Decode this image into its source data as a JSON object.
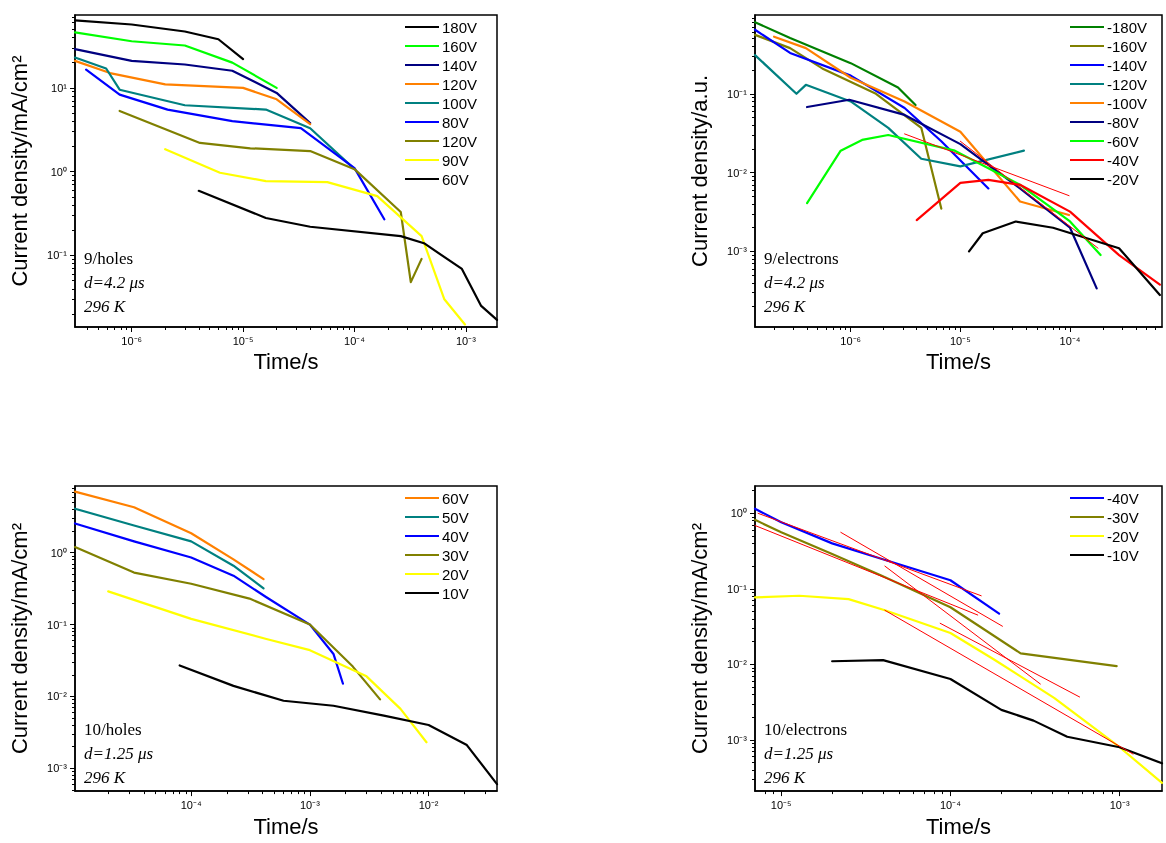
{
  "chart_data": [
    {
      "type": "line",
      "xlabel": "Time/s",
      "ylabel": "Current density/mA/cm²",
      "annotations": [
        "9/holes",
        "d=4.2 μs",
        "296 K"
      ],
      "log": "xy",
      "grid": false,
      "legend": "top right",
      "xlim": [
        3.1e-07,
        0.0019
      ],
      "ylim": [
        0.014,
        74
      ],
      "xticks": [
        {
          "value": 1e-06,
          "label": "10⁻⁶"
        },
        {
          "value": 1e-05,
          "label": "10⁻⁵"
        },
        {
          "value": 0.0001,
          "label": "10⁻⁴"
        },
        {
          "value": 0.001,
          "label": "10⁻³"
        }
      ],
      "yticks": [
        {
          "value": 0.1,
          "label": "10⁻¹"
        },
        {
          "value": 1,
          "label": "10⁰"
        },
        {
          "value": 10,
          "label": "10¹"
        }
      ],
      "series": [
        {
          "name": "180V",
          "color": "#000000",
          "x": [
            3.1e-07,
            1e-06,
            3e-06,
            6e-06,
            1e-05
          ],
          "values": [
            64,
            57,
            47,
            38,
            22
          ]
        },
        {
          "name": "160V",
          "color": "#00ff00",
          "x": [
            3.1e-07,
            1e-06,
            3e-06,
            8e-06,
            2e-05
          ],
          "values": [
            46,
            36,
            32,
            20,
            10
          ]
        },
        {
          "name": "140V",
          "color": "#000080",
          "x": [
            3.1e-07,
            1e-06,
            3e-06,
            8e-06,
            2e-05,
            4e-05
          ],
          "values": [
            29,
            21,
            19,
            16,
            8.7,
            3.8
          ]
        },
        {
          "name": "120V",
          "color": "#ff8000",
          "x": [
            3.1e-07,
            6.4e-07,
            2e-06,
            1e-05,
            2e-05,
            4e-05
          ],
          "values": [
            21,
            15,
            11,
            10,
            7.3,
            3.7
          ]
        },
        {
          "name": "100V",
          "color": "#008080",
          "x": [
            3.1e-07,
            5.9e-07,
            7.8e-07,
            3e-06,
            1.6e-05,
            4e-05,
            0.0001
          ],
          "values": [
            23,
            17,
            9.5,
            6.2,
            5.5,
            3.3,
            1.07
          ]
        },
        {
          "name": "80V",
          "color": "#0000ff",
          "x": [
            3.9e-07,
            7.8e-07,
            2.1e-06,
            8e-06,
            3.3e-05,
            0.0001,
            0.000185
          ],
          "values": [
            16.5,
            8.3,
            5.5,
            4.0,
            3.3,
            1.1,
            0.27
          ]
        },
        {
          "name": "120V",
          "color": "#808000",
          "x": [
            7.8e-07,
            4.1e-06,
            1.16e-05,
            4e-05,
            0.0001,
            0.00026,
            0.00032,
            0.0004
          ],
          "values": [
            5.3,
            2.2,
            1.9,
            1.76,
            1.07,
            0.33,
            0.048,
            0.091
          ]
        },
        {
          "name": "90V",
          "color": "#ffff00",
          "x": [
            2e-06,
            6.2e-06,
            1.6e-05,
            5.7e-05,
            0.00016,
            0.0004,
            0.00064,
            0.00098
          ],
          "values": [
            1.85,
            0.97,
            0.77,
            0.75,
            0.51,
            0.17,
            0.03,
            0.015
          ]
        },
        {
          "name": "60V",
          "color": "#000000",
          "x": [
            4e-06,
            1.6e-05,
            4e-05,
            0.00026,
            0.00042,
            0.00092,
            0.00137,
            0.0019
          ],
          "values": [
            0.59,
            0.28,
            0.22,
            0.17,
            0.14,
            0.069,
            0.025,
            0.017
          ]
        }
      ]
    },
    {
      "type": "line",
      "xlabel": "Time/s",
      "ylabel": "Current density/a.u.",
      "annotations": [
        "9/electrons",
        "d=4.2 μs",
        "296 K"
      ],
      "log": "xy",
      "grid": false,
      "legend": "top right",
      "xlim": [
        1.34e-07,
        0.00069
      ],
      "ylim": [
        0.00011,
        1
      ],
      "xticks": [
        {
          "value": 1e-06,
          "label": "10⁻⁶"
        },
        {
          "value": 1e-05,
          "label": "10⁻⁵"
        },
        {
          "value": 0.0001,
          "label": "10⁻⁴"
        }
      ],
      "yticks": [
        {
          "value": 0.001,
          "label": "10⁻³"
        },
        {
          "value": 0.01,
          "label": "10⁻²"
        },
        {
          "value": 0.1,
          "label": "10⁻¹"
        }
      ],
      "series": [
        {
          "name": "-180V",
          "color": "#008000",
          "x": [
            1.34e-07,
            2.8e-07,
            1e-06,
            2.7e-06,
            3.9e-06
          ],
          "values": [
            0.81,
            0.51,
            0.245,
            0.12,
            0.072
          ]
        },
        {
          "name": "-160V",
          "color": "#808000",
          "x": [
            1.34e-07,
            2.8e-07,
            5.5e-07,
            1.7e-06,
            4.4e-06,
            6.7e-06
          ],
          "values": [
            0.56,
            0.38,
            0.21,
            0.1,
            0.037,
            0.0035
          ]
        },
        {
          "name": "-140V",
          "color": "#0000ff",
          "x": [
            1.34e-07,
            2.8e-07,
            1e-06,
            3.1e-06,
            6.7e-06,
            1.8e-05
          ],
          "values": [
            0.65,
            0.33,
            0.17,
            0.066,
            0.025,
            0.0063
          ]
        },
        {
          "name": "-120V",
          "color": "#008080",
          "x": [
            1.34e-07,
            3.2e-07,
            3.9e-07,
            1e-06,
            2.2e-06,
            4.4e-06,
            1e-05,
            3.8e-05
          ],
          "values": [
            0.31,
            0.1,
            0.13,
            0.08,
            0.037,
            0.015,
            0.012,
            0.019
          ]
        },
        {
          "name": "-100V",
          "color": "#ff8000",
          "x": [
            2e-07,
            3.9e-07,
            1e-06,
            3.1e-06,
            1e-05,
            3.5e-05,
            9.8e-05
          ],
          "values": [
            0.53,
            0.38,
            0.16,
            0.08,
            0.033,
            0.0043,
            0.0029
          ]
        },
        {
          "name": "-80V",
          "color": "#000080",
          "x": [
            4e-07,
            9.7e-07,
            3.1e-06,
            1e-05,
            3.5e-05,
            0.0001,
            0.000175
          ],
          "values": [
            0.068,
            0.084,
            0.054,
            0.023,
            0.0063,
            0.002,
            0.00034
          ]
        },
        {
          "name": "-60V",
          "color": "#00ff00",
          "x": [
            4e-07,
            8.1e-07,
            1.27e-06,
            2.2e-06,
            8.9e-06,
            3.5e-05,
            0.0001,
            0.00019
          ],
          "values": [
            0.0041,
            0.019,
            0.026,
            0.03,
            0.019,
            0.007,
            0.0024,
            0.0009
          ]
        },
        {
          "name": "-40V",
          "color": "#ff0000",
          "x": [
            4e-06,
            1e-05,
            1.8e-05,
            3.5e-05,
            0.0001,
            0.00028,
            0.00066
          ],
          "values": [
            0.0025,
            0.0074,
            0.0081,
            0.007,
            0.0032,
            0.0009,
            0.00038
          ]
        },
        {
          "name": "-20V",
          "color": "#000000",
          "x": [
            1.2e-05,
            1.6e-05,
            3.2e-05,
            7e-05,
            0.00028,
            0.00066
          ],
          "values": [
            0.001,
            0.0017,
            0.0024,
            0.002,
            0.0011,
            0.00028
          ]
        },
        {
          "color": "#ff0000",
          "x": [
            3.1e-06,
            9.8e-05
          ],
          "values": [
            0.031,
            0.0051
          ]
        },
        {
          "color": "#ff0000",
          "x": [
            1e-05,
            0.00018
          ],
          "values": [
            0.025,
            0.0011
          ]
        }
      ]
    },
    {
      "type": "line",
      "xlabel": "Time/s",
      "ylabel": "Current density/mA/cm²",
      "annotations": [
        "10/holes",
        "d=1.25 μs",
        "296 K"
      ],
      "log": "xy",
      "grid": false,
      "legend": "top right",
      "xlim": [
        1.05e-05,
        0.0377
      ],
      "ylim": [
        0.00048,
        8.5
      ],
      "xticks": [
        {
          "value": 0.0001,
          "label": "10⁻⁴"
        },
        {
          "value": 0.001,
          "label": "10⁻³"
        },
        {
          "value": 0.01,
          "label": "10⁻²"
        }
      ],
      "yticks": [
        {
          "value": 0.001,
          "label": "10⁻³"
        },
        {
          "value": 0.01,
          "label": "10⁻²"
        },
        {
          "value": 0.1,
          "label": "10⁻¹"
        },
        {
          "value": 1,
          "label": "10⁰"
        }
      ],
      "series": [
        {
          "name": "60V",
          "color": "#ff8000",
          "x": [
            1.05e-05,
            3.3e-05,
            0.0001,
            0.000227,
            0.000407
          ],
          "values": [
            7.1,
            4.3,
            1.87,
            0.81,
            0.43
          ]
        },
        {
          "name": "50V",
          "color": "#008080",
          "x": [
            1.05e-05,
            3.3e-05,
            0.0001,
            0.000227,
            0.000407
          ],
          "values": [
            4.1,
            2.4,
            1.44,
            0.66,
            0.32
          ]
        },
        {
          "name": "40V",
          "color": "#0000ff",
          "x": [
            1.05e-05,
            3.3e-05,
            0.0001,
            0.000227,
            0.00043,
            0.001,
            0.00158,
            0.0019
          ],
          "values": [
            2.56,
            1.44,
            0.86,
            0.48,
            0.24,
            0.1,
            0.039,
            0.015
          ]
        },
        {
          "name": "30V",
          "color": "#808000",
          "x": [
            1.05e-05,
            3.3e-05,
            0.0001,
            0.00031,
            0.001,
            0.0023,
            0.0039
          ],
          "values": [
            1.2,
            0.53,
            0.37,
            0.23,
            0.1,
            0.026,
            0.0091
          ]
        },
        {
          "name": "20V",
          "color": "#ffff00",
          "x": [
            2e-05,
            0.0001,
            0.00043,
            0.001,
            0.003,
            0.0058,
            0.0096
          ],
          "values": [
            0.29,
            0.12,
            0.063,
            0.044,
            0.019,
            0.0067,
            0.0023
          ]
        },
        {
          "name": "10V",
          "color": "#000000",
          "x": [
            8e-05,
            0.000227,
            0.0006,
            0.00158,
            0.0042,
            0.01,
            0.021,
            0.0377
          ],
          "values": [
            0.027,
            0.014,
            0.0087,
            0.0074,
            0.0054,
            0.004,
            0.0021,
            0.0006
          ]
        }
      ]
    },
    {
      "type": "line",
      "xlabel": "Time/s",
      "ylabel": "Current density/mA/cm²",
      "annotations": [
        "10/electrons",
        "d=1.25 μs",
        "296 K"
      ],
      "log": "xy",
      "grid": false,
      "legend": "top right",
      "xlim": [
        7e-06,
        0.00178
      ],
      "ylim": [
        0.00021,
        2.3
      ],
      "xticks": [
        {
          "value": 1e-05,
          "label": "10⁻⁵"
        },
        {
          "value": 0.0001,
          "label": "10⁻⁴"
        },
        {
          "value": 0.001,
          "label": "10⁻³"
        }
      ],
      "yticks": [
        {
          "value": 0.001,
          "label": "10⁻³"
        },
        {
          "value": 0.01,
          "label": "10⁻²"
        },
        {
          "value": 0.1,
          "label": "10⁻¹"
        },
        {
          "value": 1,
          "label": "10⁰"
        }
      ],
      "series": [
        {
          "name": "-40V",
          "color": "#0000ff",
          "x": [
            7e-06,
            1e-05,
            2e-05,
            3.9e-05,
            0.0001,
            0.000194
          ],
          "values": [
            1.15,
            0.76,
            0.4,
            0.25,
            0.13,
            0.047
          ]
        },
        {
          "name": "-30V",
          "color": "#808000",
          "x": [
            7e-06,
            1e-05,
            2e-05,
            3.9e-05,
            0.0001,
            0.00026,
            0.00096
          ],
          "values": [
            0.82,
            0.56,
            0.29,
            0.15,
            0.057,
            0.014,
            0.0095
          ]
        },
        {
          "name": "-20V",
          "color": "#ffff00",
          "x": [
            7e-06,
            1.28e-05,
            2.5e-05,
            4.1e-05,
            0.0001,
            0.00018,
            0.00041,
            0.001,
            0.00178
          ],
          "values": [
            0.077,
            0.081,
            0.073,
            0.052,
            0.026,
            0.0117,
            0.0036,
            0.0008,
            0.00027
          ]
        },
        {
          "name": "-10V",
          "color": "#000000",
          "x": [
            2e-05,
            4e-05,
            0.0001,
            0.0002,
            0.00031,
            0.00049,
            0.001,
            0.00178
          ],
          "values": [
            0.011,
            0.0114,
            0.0064,
            0.0025,
            0.0018,
            0.0011,
            0.0008,
            0.00049
          ]
        },
        {
          "color": "#ff0000",
          "x": [
            7.3e-06,
            0.000152
          ],
          "values": [
            1.0,
            0.081
          ]
        },
        {
          "color": "#ff0000",
          "x": [
            7e-06,
            0.000145
          ],
          "values": [
            0.69,
            0.045
          ]
        },
        {
          "color": "#ff0000",
          "x": [
            2.25e-05,
            0.000203
          ],
          "values": [
            0.56,
            0.032
          ]
        },
        {
          "color": "#ff0000",
          "x": [
            4.1e-05,
            0.00034
          ],
          "values": [
            0.2,
            0.0055
          ]
        },
        {
          "color": "#ff0000",
          "x": [
            4.1e-05,
            0.0012
          ],
          "values": [
            0.052,
            0.00065
          ]
        },
        {
          "color": "#ff0000",
          "x": [
            8.7e-05,
            0.00058
          ],
          "values": [
            0.035,
            0.0037
          ]
        }
      ]
    }
  ]
}
